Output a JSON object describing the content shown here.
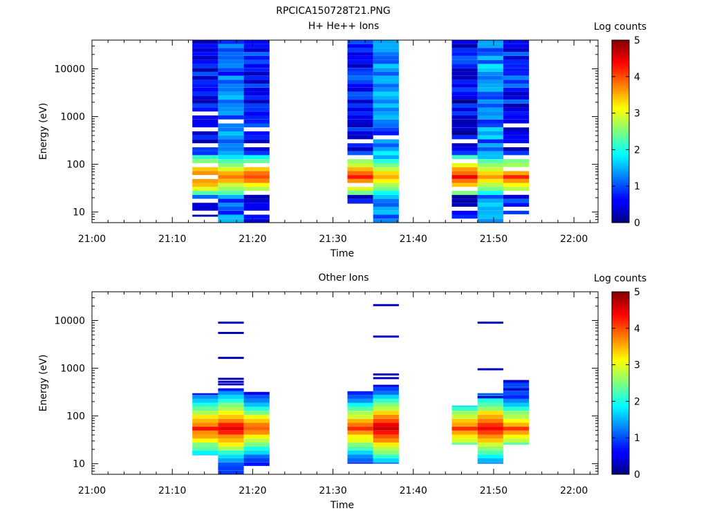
{
  "figure_title": "RPCICA150728T21.PNG",
  "chart_data": [
    {
      "type": "heatmap",
      "title": "H+ He++ Ions",
      "xlabel": "Time",
      "ylabel": "Energy (eV)",
      "colorbar_label": "Log counts",
      "colorbar_ticks": [
        "0",
        "1",
        "2",
        "3",
        "4",
        "5"
      ],
      "colorbar_range": [
        0,
        5
      ],
      "x_ticks": [
        "21:00",
        "21:10",
        "21:20",
        "21:30",
        "21:40",
        "21:50",
        "22:00"
      ],
      "x_range_minutes": [
        0,
        63
      ],
      "y_scale": "log",
      "y_ticks": [
        "10",
        "100",
        "1000",
        "10000"
      ],
      "y_range": [
        6,
        40000
      ],
      "colormap": "jet",
      "columns": [
        {
          "t0": 12.5,
          "t1": 15.7,
          "emin": 8,
          "emax": 40000,
          "profile": "dense",
          "low": 0.6,
          "peak": 4.2,
          "gaps": [
            2,
            5,
            11,
            14,
            19,
            23,
            27
          ]
        },
        {
          "t0": 15.7,
          "t1": 18.9,
          "emin": 6,
          "emax": 40000,
          "profile": "dense",
          "low": 1.2,
          "peak": 3.9,
          "gaps": [
            26
          ]
        },
        {
          "t0": 18.9,
          "t1": 22.1,
          "emin": 6,
          "emax": 40000,
          "profile": "dense",
          "low": 0.7,
          "peak": 4.1,
          "gaps": [
            3,
            8,
            15,
            20,
            24
          ]
        },
        {
          "t0": 31.8,
          "t1": 35.0,
          "emin": 15,
          "emax": 40000,
          "profile": "dense",
          "low": 0.6,
          "peak": 4.2,
          "gaps": [
            6,
            13,
            17
          ]
        },
        {
          "t0": 35.0,
          "t1": 38.2,
          "emin": 6,
          "emax": 40000,
          "profile": "dense",
          "low": 1.3,
          "peak": 3.6,
          "gaps": [
            22
          ]
        },
        {
          "t0": 44.8,
          "t1": 48.0,
          "emin": 6,
          "emax": 40000,
          "profile": "dense",
          "low": 0.6,
          "peak": 4.4,
          "gaps": [
            1,
            4,
            9,
            16,
            21
          ]
        },
        {
          "t0": 48.0,
          "t1": 51.2,
          "emin": 6,
          "emax": 40000,
          "profile": "dense",
          "low": 1.3,
          "peak": 3.8,
          "gaps": []
        },
        {
          "t0": 51.2,
          "t1": 54.4,
          "emin": 9,
          "emax": 40000,
          "profile": "dense",
          "low": 0.7,
          "peak": 4.1,
          "gaps": [
            2,
            6,
            12,
            15,
            18,
            23
          ]
        }
      ]
    },
    {
      "type": "heatmap",
      "title": "Other Ions",
      "xlabel": "Time",
      "ylabel": "Energy (eV)",
      "colorbar_label": "Log counts",
      "colorbar_ticks": [
        "0",
        "1",
        "2",
        "3",
        "4",
        "5"
      ],
      "colorbar_range": [
        0,
        5
      ],
      "x_ticks": [
        "21:00",
        "21:10",
        "21:20",
        "21:30",
        "21:40",
        "21:50",
        "22:00"
      ],
      "x_range_minutes": [
        0,
        63
      ],
      "y_scale": "log",
      "y_ticks": [
        "10",
        "100",
        "1000",
        "10000"
      ],
      "y_range": [
        6,
        40000
      ],
      "colormap": "jet",
      "columns": [
        {
          "t0": 12.5,
          "t1": 15.7,
          "emin": 15,
          "emax": 300,
          "profile": "sparse",
          "low": 0.5,
          "peak": 4.2,
          "lines": []
        },
        {
          "t0": 15.7,
          "t1": 18.9,
          "emin": 6,
          "emax": 380,
          "profile": "sparse",
          "low": 0.6,
          "peak": 4.6,
          "lines": [
            9000,
            5500,
            1650,
            600,
            520,
            460
          ]
        },
        {
          "t0": 18.9,
          "t1": 22.1,
          "emin": 9,
          "emax": 320,
          "profile": "sparse",
          "low": 0.6,
          "peak": 4.0,
          "lines": []
        },
        {
          "t0": 31.8,
          "t1": 35.0,
          "emin": 10,
          "emax": 330,
          "profile": "sparse",
          "low": 0.5,
          "peak": 4.1,
          "lines": []
        },
        {
          "t0": 35.0,
          "t1": 38.2,
          "emin": 10,
          "emax": 450,
          "profile": "sparse",
          "low": 0.6,
          "peak": 4.7,
          "lines": [
            21000,
            4600,
            740,
            620
          ]
        },
        {
          "t0": 44.8,
          "t1": 48.0,
          "emin": 25,
          "emax": 165,
          "profile": "sparse",
          "low": 0.6,
          "peak": 4.1,
          "lines": []
        },
        {
          "t0": 48.0,
          "t1": 51.2,
          "emin": 10,
          "emax": 300,
          "profile": "sparse",
          "low": 0.5,
          "peak": 4.6,
          "lines": [
            9000,
            950,
            250
          ]
        },
        {
          "t0": 51.2,
          "t1": 54.4,
          "emin": 25,
          "emax": 540,
          "profile": "sparse",
          "low": 0.8,
          "peak": 4.0,
          "lines": [
            540,
            360
          ]
        }
      ]
    }
  ]
}
